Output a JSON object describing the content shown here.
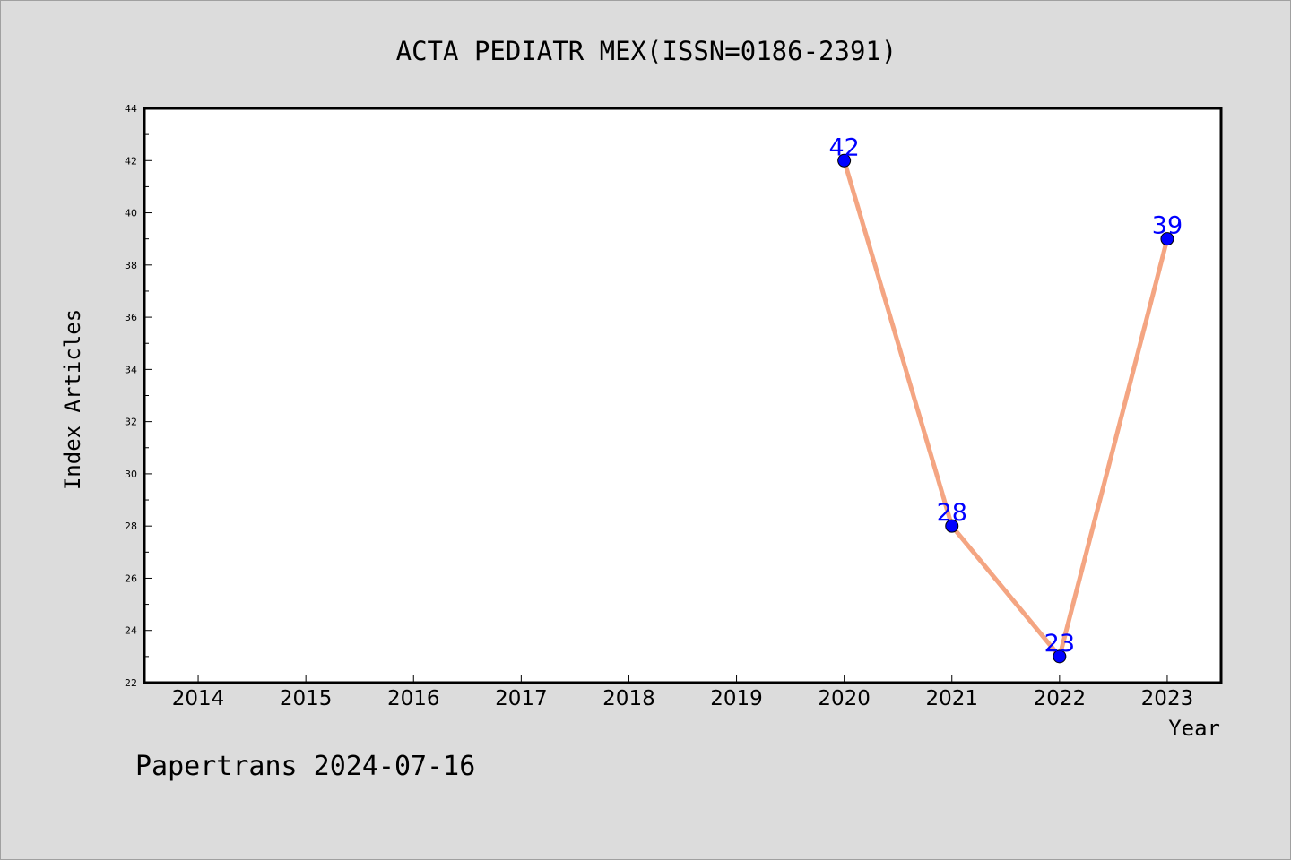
{
  "chart_data": {
    "type": "line",
    "title": "ACTA PEDIATR MEX(ISSN=0186-2391)",
    "xlabel": "Year",
    "ylabel": "Index Articles",
    "categories": [
      "2014",
      "2015",
      "2016",
      "2017",
      "2018",
      "2019",
      "2020",
      "2021",
      "2022",
      "2023"
    ],
    "x": [
      2020,
      2021,
      2022,
      2023
    ],
    "values": [
      42,
      28,
      23,
      39
    ],
    "data_labels": [
      "42",
      "28",
      "23",
      "39"
    ],
    "ylim": [
      22,
      44
    ],
    "yticks": [
      "22",
      "24",
      "26",
      "28",
      "30",
      "32",
      "34",
      "36",
      "38",
      "40",
      "42",
      "44"
    ],
    "xlim": [
      2013.5,
      2023.5
    ],
    "grid": false,
    "line_color": "#f4a582",
    "marker_color": "#0000ff",
    "label_color": "#0000ff"
  },
  "footer": {
    "text": "Papertrans 2024-07-16"
  },
  "colors": {
    "background": "#dcdcdc",
    "plot_background": "#ffffff"
  }
}
